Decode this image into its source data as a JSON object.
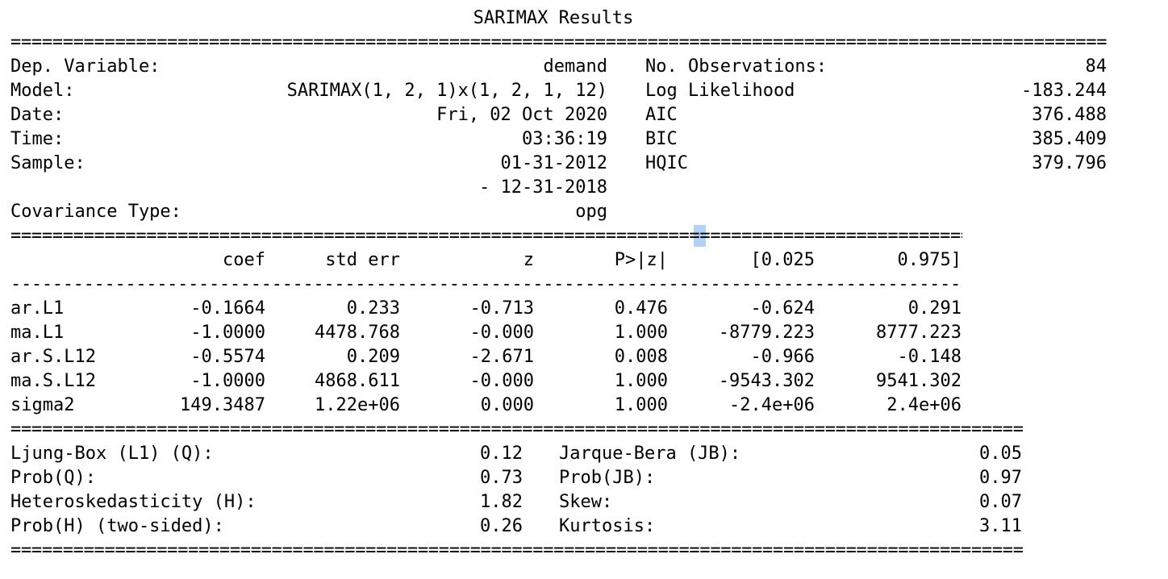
{
  "title": "SARIMAX Results",
  "rule_double": "==========================================================================================================================================================================",
  "rule_dash": "------------------------------------------------------------------------------------------------------------------------------------------------------------------------",
  "header_left": [
    {
      "label": "Dep. Variable:",
      "value": "demand"
    },
    {
      "label": "Model:",
      "value": "SARIMAX(1, 2, 1)x(1, 2, 1, 12)"
    },
    {
      "label": "Date:",
      "value": "Fri, 02 Oct 2020"
    },
    {
      "label": "Time:",
      "value": "03:36:19"
    },
    {
      "label": "Sample:",
      "value": "01-31-2012"
    },
    {
      "label": "",
      "value": "- 12-31-2018"
    },
    {
      "label": "Covariance Type:",
      "value": "opg"
    }
  ],
  "header_right": [
    {
      "label": "No. Observations:",
      "value": "84"
    },
    {
      "label": "Log Likelihood",
      "value": "-183.244"
    },
    {
      "label": "AIC",
      "value": "376.488"
    },
    {
      "label": "BIC",
      "value": "385.409"
    },
    {
      "label": "HQIC",
      "value": "379.796"
    }
  ],
  "coef_table": {
    "columns": [
      "coef",
      "std err",
      "z",
      "P>|z|",
      "[0.025",
      "0.975]"
    ],
    "rows": [
      {
        "name": "ar.L1",
        "cells": [
          "-0.1664",
          "0.233",
          "-0.713",
          "0.476",
          "-0.624",
          "0.291"
        ]
      },
      {
        "name": "ma.L1",
        "cells": [
          "-1.0000",
          "4478.768",
          "-0.000",
          "1.000",
          "-8779.223",
          "8777.223"
        ]
      },
      {
        "name": "ar.S.L12",
        "cells": [
          "-0.5574",
          "0.209",
          "-2.671",
          "0.008",
          "-0.966",
          "-0.148"
        ]
      },
      {
        "name": "ma.S.L12",
        "cells": [
          "-1.0000",
          "4868.611",
          "-0.000",
          "1.000",
          "-9543.302",
          "9541.302"
        ]
      },
      {
        "name": "sigma2",
        "cells": [
          "149.3487",
          "1.22e+06",
          "0.000",
          "1.000",
          "-2.4e+06",
          "2.4e+06"
        ]
      }
    ]
  },
  "diagnostics_left": [
    {
      "label": "Ljung-Box (L1) (Q):",
      "value": "0.12"
    },
    {
      "label": "Prob(Q):",
      "value": "0.73"
    },
    {
      "label": "Heteroskedasticity (H):",
      "value": "1.82"
    },
    {
      "label": "Prob(H) (two-sided):",
      "value": "0.26"
    }
  ],
  "diagnostics_right": [
    {
      "label": "Jarque-Bera (JB):",
      "value": "0.05"
    },
    {
      "label": "Prob(JB):",
      "value": "0.97"
    },
    {
      "label": "Skew:",
      "value": "0.07"
    },
    {
      "label": "Kurtosis:",
      "value": "3.11"
    }
  ],
  "selection_color": "#b3d0f5"
}
